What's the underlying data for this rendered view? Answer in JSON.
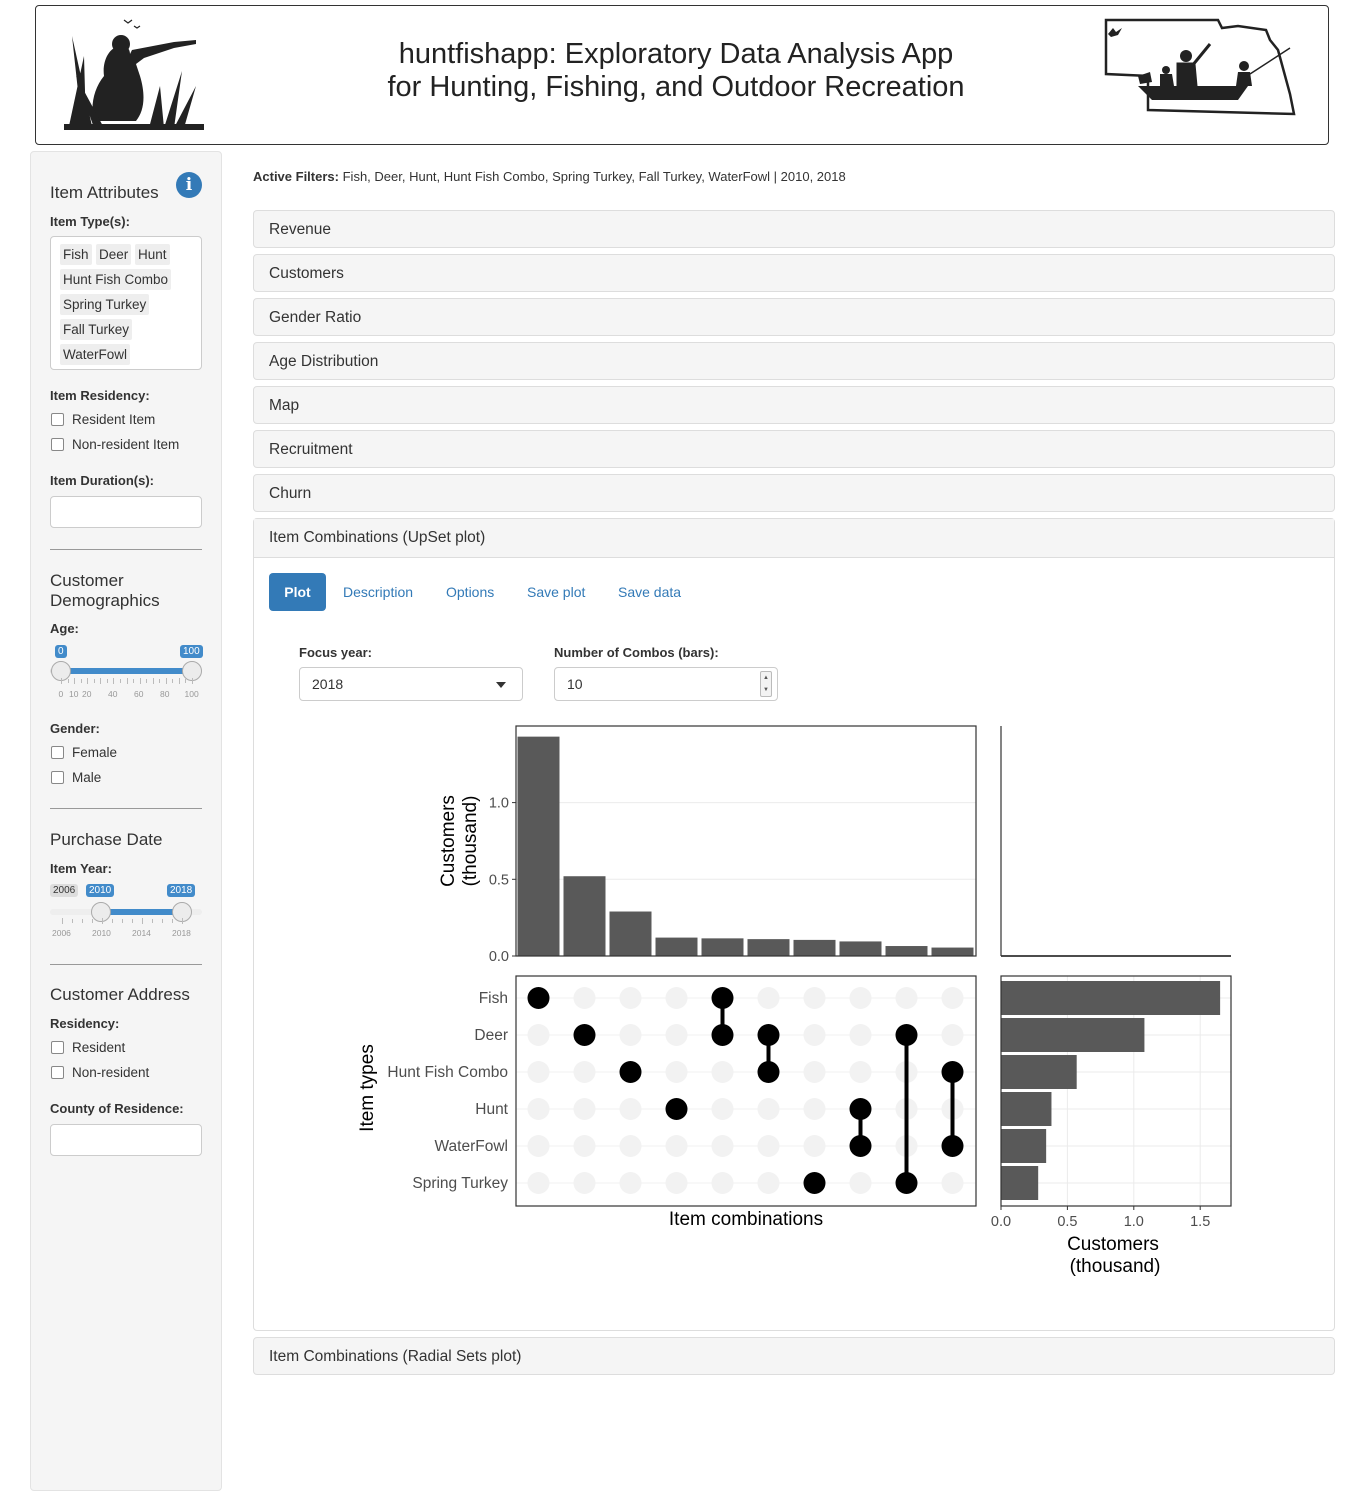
{
  "header": {
    "title_line1": "huntfishapp: Exploratory Data Analysis App",
    "title_line2": "for Hunting, Fishing, and Outdoor Recreation"
  },
  "sidebar": {
    "item_attributes": {
      "heading": "Item Attributes",
      "item_types_label": "Item Type(s):",
      "item_types_selected": [
        "Fish",
        "Deer",
        "Hunt",
        "Hunt Fish Combo",
        "Spring Turkey",
        "Fall Turkey",
        "WaterFowl"
      ],
      "item_residency_label": "Item Residency:",
      "item_residency_options": [
        "Resident Item",
        "Non-resident Item"
      ],
      "item_duration_label": "Item Duration(s):"
    },
    "customer_demographics": {
      "heading_line1": "Customer",
      "heading_line2": "Demographics",
      "age_label": "Age:",
      "age_min": "0",
      "age_max": "100",
      "age_ticks": [
        "0",
        "10",
        "20",
        "40",
        "60",
        "80",
        "100"
      ],
      "gender_label": "Gender:",
      "gender_options": [
        "Female",
        "Male"
      ]
    },
    "purchase_date": {
      "heading": "Purchase Date",
      "item_year_label": "Item Year:",
      "year_min_badge": "2006",
      "year_from": "2010",
      "year_to": "2018",
      "year_ticks": [
        "2006",
        "2010",
        "2014",
        "2018"
      ]
    },
    "customer_address": {
      "heading": "Customer Address",
      "residency_label": "Residency:",
      "residency_options": [
        "Resident",
        "Non-resident"
      ],
      "county_label": "County of Residence:"
    }
  },
  "main": {
    "active_filters_label": "Active Filters:",
    "active_filters_value": "Fish, Deer, Hunt, Hunt Fish Combo, Spring Turkey, Fall Turkey, WaterFowl | 2010, 2018",
    "panels": [
      "Revenue",
      "Customers",
      "Gender Ratio",
      "Age Distribution",
      "Map",
      "Recruitment",
      "Churn"
    ],
    "open_panel": "Item Combinations (UpSet plot)",
    "last_panel": "Item Combinations (Radial Sets plot)",
    "tabs": [
      "Plot",
      "Description",
      "Options",
      "Save plot",
      "Save data"
    ],
    "focus_year_label": "Focus year:",
    "focus_year_value": "2018",
    "num_combos_label": "Number of Combos (bars):",
    "num_combos_value": "10"
  },
  "chart_data": {
    "type": "upset",
    "sets": [
      "Fish",
      "Deer",
      "Hunt Fish Combo",
      "Hunt",
      "WaterFowl",
      "Spring Turkey"
    ],
    "intersections": [
      {
        "members": [
          "Fish"
        ],
        "value": 1.43
      },
      {
        "members": [
          "Deer"
        ],
        "value": 0.52
      },
      {
        "members": [
          "Hunt Fish Combo"
        ],
        "value": 0.29
      },
      {
        "members": [
          "Hunt"
        ],
        "value": 0.12
      },
      {
        "members": [
          "Fish",
          "Deer"
        ],
        "value": 0.115
      },
      {
        "members": [
          "Deer",
          "Hunt Fish Combo"
        ],
        "value": 0.11
      },
      {
        "members": [
          "Spring Turkey"
        ],
        "value": 0.105
      },
      {
        "members": [
          "Hunt",
          "WaterFowl"
        ],
        "value": 0.095
      },
      {
        "members": [
          "Deer",
          "Spring Turkey"
        ],
        "value": 0.065
      },
      {
        "members": [
          "Hunt Fish Combo",
          "WaterFowl"
        ],
        "value": 0.055
      }
    ],
    "set_sizes": [
      1.65,
      1.08,
      0.57,
      0.38,
      0.34,
      0.28
    ],
    "top_ylabel_line1": "Customers",
    "top_ylabel_line2": "(thousand)",
    "top_yticks": [
      "0.0",
      "0.5",
      "1.0"
    ],
    "top_ylim": [
      0,
      1.43
    ],
    "matrix_xlabel": "Item combinations",
    "matrix_ylabel": "Item types",
    "side_xlabel_line1": "Customers",
    "side_xlabel_line2": "(thousand)",
    "side_xticks": [
      "0.0",
      "0.5",
      "1.0",
      "1.5"
    ],
    "side_xlim": [
      0,
      1.72
    ],
    "bar_color": "#595959"
  }
}
